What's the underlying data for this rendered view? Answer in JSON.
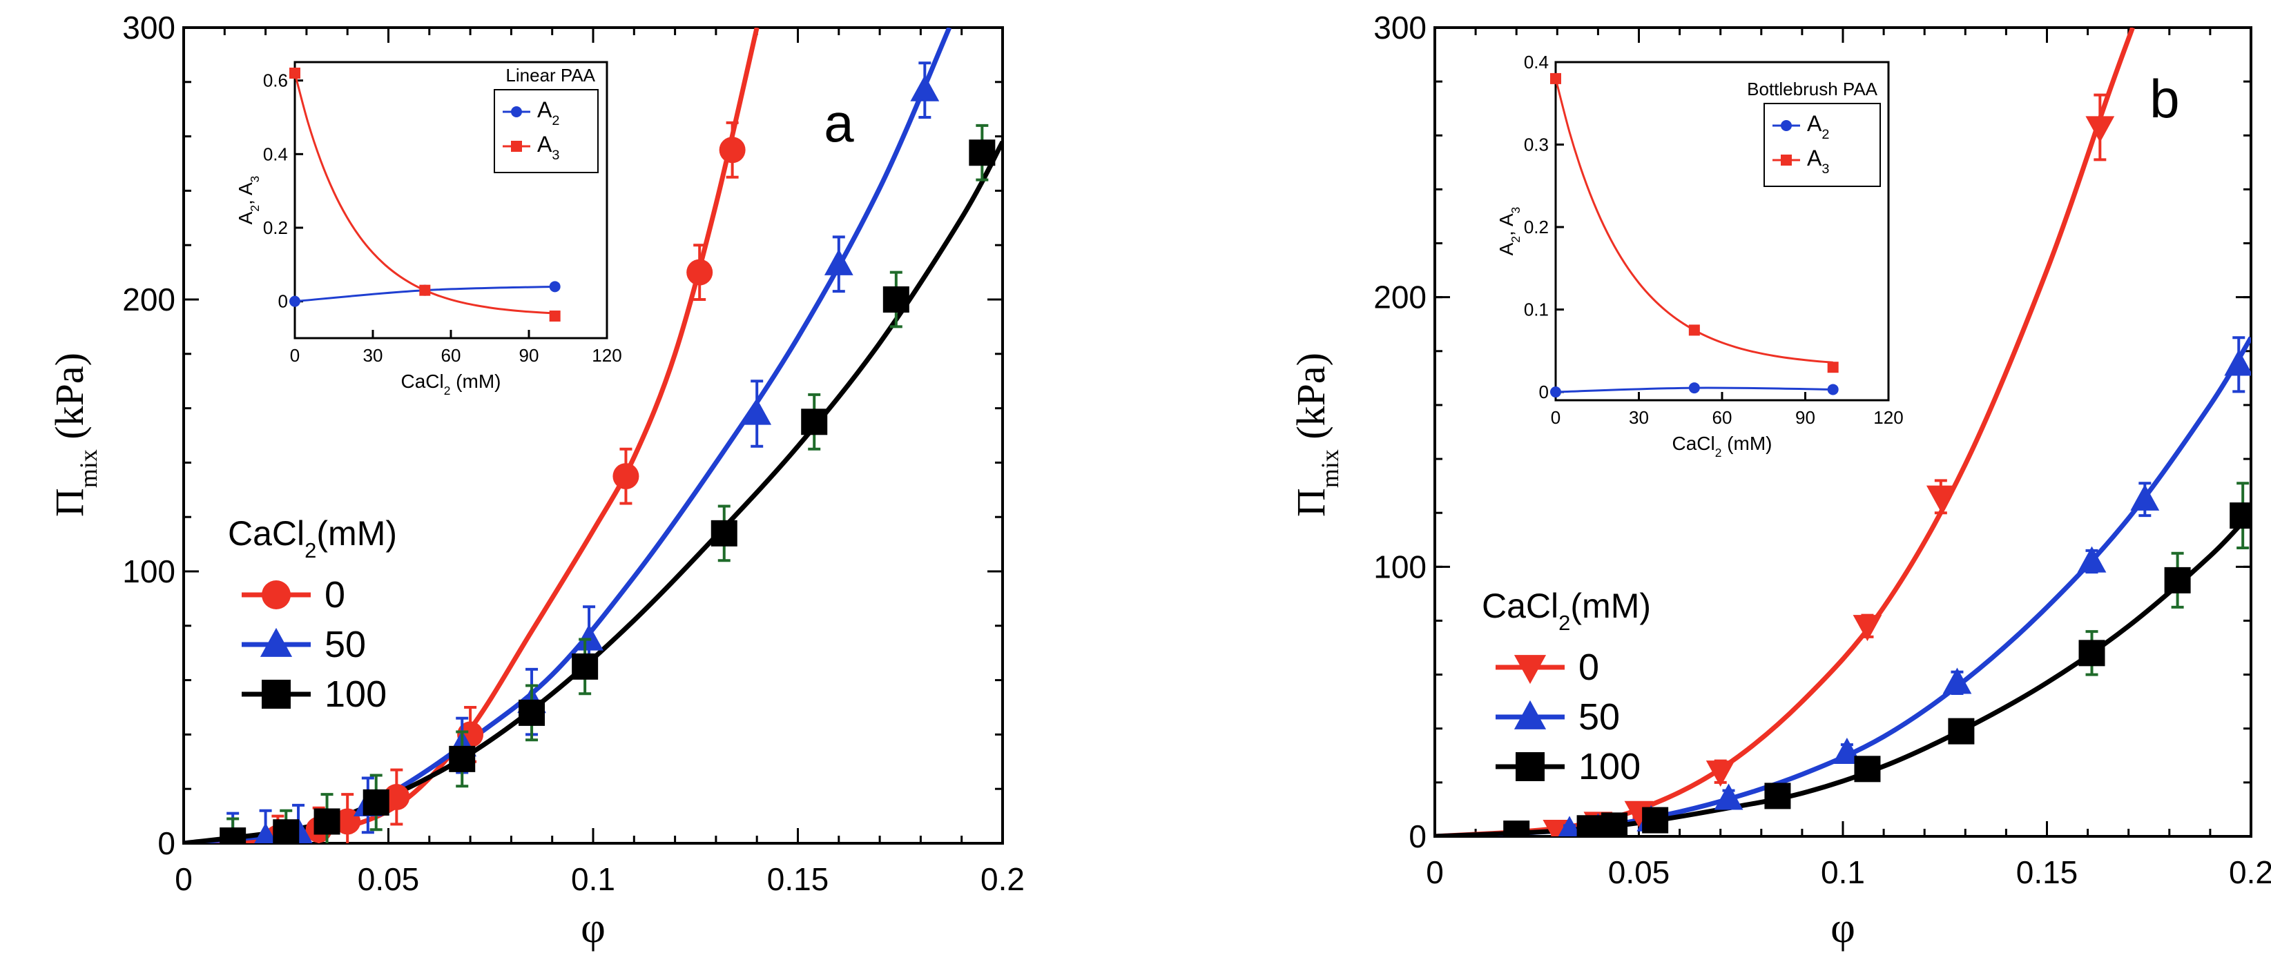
{
  "figure": {
    "domain": "Chart"
  },
  "chart_data": [
    {
      "id": "a",
      "type": "scatter",
      "panel_label": "a",
      "xlabel": "φ",
      "ylabel": "Π",
      "ylabel_sub": "mix",
      "ylabel_units": "(kPa)",
      "xlim": [
        0,
        0.2
      ],
      "ylim": [
        0,
        300
      ],
      "xticks": [
        0,
        0.05,
        0.1,
        0.15,
        0.2
      ],
      "xtick_labels": [
        "0",
        "0.05",
        "0.1",
        "0.15",
        "0.2"
      ],
      "yticks": [
        0,
        100,
        200,
        300
      ],
      "ytick_labels": [
        "0",
        "100",
        "200",
        "300"
      ],
      "grid": false,
      "legend": {
        "title": "CaCl",
        "title_sub": "2",
        "title_rest": "(mM)",
        "placement": "middle-left",
        "entries": [
          "0",
          "50",
          "100"
        ]
      },
      "series": [
        {
          "name": "0",
          "color": "#ee3124",
          "marker": "circle",
          "x": [
            0.023,
            0.033,
            0.04,
            0.052,
            0.07,
            0.108,
            0.126,
            0.134
          ],
          "y": [
            2,
            5,
            8,
            17,
            40,
            135,
            210,
            255
          ],
          "err": [
            8,
            8,
            10,
            10,
            10,
            10,
            10,
            10
          ],
          "fit": [
            [
              0,
              0
            ],
            [
              0.02,
              1
            ],
            [
              0.04,
              6
            ],
            [
              0.055,
              17
            ],
            [
              0.07,
              42
            ],
            [
              0.085,
              78
            ],
            [
              0.1,
              115
            ],
            [
              0.11,
              142
            ],
            [
              0.12,
              180
            ],
            [
              0.13,
              235
            ],
            [
              0.14,
              300
            ]
          ]
        },
        {
          "name": "50",
          "color": "#1f3fd1",
          "marker": "triangle-up",
          "x": [
            0.012,
            0.02,
            0.028,
            0.045,
            0.068,
            0.085,
            0.099,
            0.14,
            0.16,
            0.181
          ],
          "y": [
            1,
            2,
            4,
            14,
            36,
            52,
            75,
            158,
            213,
            277
          ],
          "err": [
            10,
            10,
            10,
            10,
            10,
            12,
            12,
            12,
            10,
            10
          ],
          "fit": [
            [
              0,
              0
            ],
            [
              0.03,
              5
            ],
            [
              0.05,
              18
            ],
            [
              0.07,
              38
            ],
            [
              0.09,
              62
            ],
            [
              0.11,
              98
            ],
            [
              0.13,
              140
            ],
            [
              0.15,
              186
            ],
            [
              0.17,
              241
            ],
            [
              0.187,
              300
            ]
          ]
        },
        {
          "name": "100",
          "color": "#000000",
          "marker": "square",
          "x": [
            0.012,
            0.025,
            0.035,
            0.047,
            0.068,
            0.085,
            0.098,
            0.132,
            0.154,
            0.174,
            0.195
          ],
          "y": [
            1,
            4,
            8,
            15,
            31,
            48,
            65,
            114,
            155,
            200,
            254
          ],
          "err": [
            8,
            8,
            10,
            10,
            10,
            10,
            10,
            10,
            10,
            10,
            10
          ],
          "fit": [
            [
              0,
              0
            ],
            [
              0.03,
              6
            ],
            [
              0.05,
              17
            ],
            [
              0.07,
              33
            ],
            [
              0.09,
              55
            ],
            [
              0.11,
              82
            ],
            [
              0.13,
              113
            ],
            [
              0.15,
              146
            ],
            [
              0.17,
              184
            ],
            [
              0.19,
              230
            ],
            [
              0.2,
              258
            ]
          ]
        }
      ],
      "inset": {
        "title": "Linear PAA",
        "xlabel": "CaCl",
        "xlabel_sub": "2",
        "xlabel_rest": " (mM)",
        "ylabel": "A",
        "ylabel_parts": [
          "A",
          "2",
          ", A",
          "3"
        ],
        "xlim": [
          0,
          120
        ],
        "ylim": [
          -0.1,
          0.65
        ],
        "xticks": [
          0,
          30,
          60,
          90,
          120
        ],
        "xtick_labels": [
          "0",
          "30",
          "60",
          "90",
          "120"
        ],
        "yticks": [
          0,
          0.2,
          0.4,
          0.6
        ],
        "ytick_labels": [
          "0",
          "0.2",
          "0.4",
          "0.6"
        ],
        "legend_entries": [
          {
            "label": "A",
            "sub": "2",
            "color": "#1f3fd1",
            "marker": "circle"
          },
          {
            "label": "A",
            "sub": "3",
            "color": "#ee3124",
            "marker": "square"
          }
        ],
        "series": [
          {
            "name": "A2",
            "color": "#1f3fd1",
            "marker": "circle",
            "x": [
              0,
              50,
              100
            ],
            "y": [
              0.0,
              0.03,
              0.04
            ]
          },
          {
            "name": "A3",
            "color": "#ee3124",
            "marker": "square",
            "x": [
              0,
              50,
              100
            ],
            "y": [
              0.62,
              0.03,
              -0.04
            ]
          }
        ]
      }
    },
    {
      "id": "b",
      "type": "scatter",
      "panel_label": "b",
      "xlabel": "φ",
      "ylabel": "Π",
      "ylabel_sub": "mix",
      "ylabel_units": "(kPa)",
      "xlim": [
        0,
        0.2
      ],
      "ylim": [
        0,
        300
      ],
      "xticks": [
        0,
        0.05,
        0.1,
        0.15,
        0.2
      ],
      "xtick_labels": [
        "0",
        "0.05",
        "0.1",
        "0.15",
        "0.2"
      ],
      "yticks": [
        0,
        100,
        200,
        300
      ],
      "ytick_labels": [
        "0",
        "100",
        "200",
        "300"
      ],
      "grid": false,
      "legend": {
        "title": "CaCl",
        "title_sub": "2",
        "title_rest": "(mM)",
        "placement": "lower-left",
        "entries": [
          "0",
          "50",
          "100"
        ]
      },
      "series": [
        {
          "name": "0",
          "color": "#ee3124",
          "marker": "triangle-down",
          "x": [
            0.03,
            0.04,
            0.05,
            0.07,
            0.106,
            0.124,
            0.163
          ],
          "y": [
            2,
            5,
            9,
            24,
            78,
            126,
            263
          ],
          "err": [
            2,
            2,
            2,
            4,
            4,
            6,
            12
          ],
          "fit": [
            [
              0,
              0
            ],
            [
              0.03,
              3
            ],
            [
              0.05,
              10
            ],
            [
              0.07,
              25
            ],
            [
              0.09,
              50
            ],
            [
              0.11,
              85
            ],
            [
              0.13,
              138
            ],
            [
              0.15,
              210
            ],
            [
              0.165,
              275
            ],
            [
              0.171,
              300
            ]
          ]
        },
        {
          "name": "50",
          "color": "#1f3fd1",
          "marker": "triangle-up",
          "x": [
            0.033,
            0.04,
            0.053,
            0.072,
            0.101,
            0.128,
            0.161,
            0.174,
            0.197
          ],
          "y": [
            2,
            3,
            6,
            14,
            31,
            57,
            102,
            125,
            175
          ],
          "err": [
            2,
            2,
            2,
            3,
            3,
            4,
            4,
            6,
            10
          ],
          "fit": [
            [
              0,
              0
            ],
            [
              0.03,
              2
            ],
            [
              0.05,
              6
            ],
            [
              0.07,
              13
            ],
            [
              0.09,
              23
            ],
            [
              0.11,
              37
            ],
            [
              0.13,
              58
            ],
            [
              0.15,
              85
            ],
            [
              0.17,
              118
            ],
            [
              0.19,
              160
            ],
            [
              0.2,
              185
            ]
          ]
        },
        {
          "name": "100",
          "color": "#000000",
          "marker": "square",
          "x": [
            0.02,
            0.038,
            0.044,
            0.054,
            0.084,
            0.106,
            0.129,
            0.161,
            0.182,
            0.198
          ],
          "y": [
            1,
            3,
            4,
            6,
            15,
            25,
            39,
            68,
            95,
            119
          ],
          "err": [
            2,
            2,
            2,
            2,
            3,
            3,
            4,
            8,
            10,
            12
          ],
          "fit": [
            [
              0,
              0
            ],
            [
              0.03,
              2
            ],
            [
              0.05,
              5
            ],
            [
              0.07,
              10
            ],
            [
              0.09,
              16
            ],
            [
              0.11,
              26
            ],
            [
              0.13,
              40
            ],
            [
              0.15,
              57
            ],
            [
              0.17,
              78
            ],
            [
              0.19,
              104
            ],
            [
              0.2,
              120
            ]
          ]
        }
      ],
      "inset": {
        "title": "Bottlebrush PAA",
        "xlabel": "CaCl",
        "xlabel_sub": "2",
        "xlabel_rest": " (mM)",
        "ylabel_parts": [
          "A",
          "2",
          ", A",
          "3"
        ],
        "xlim": [
          0,
          120
        ],
        "ylim": [
          -0.01,
          0.4
        ],
        "xticks": [
          0,
          30,
          60,
          90,
          120
        ],
        "xtick_labels": [
          "0",
          "30",
          "60",
          "90",
          "120"
        ],
        "yticks": [
          0,
          0.1,
          0.2,
          0.3,
          0.4
        ],
        "ytick_labels": [
          "0",
          "0.1",
          "0.2",
          "0.3",
          "0.4"
        ],
        "legend_entries": [
          {
            "label": "A",
            "sub": "2",
            "color": "#1f3fd1",
            "marker": "circle"
          },
          {
            "label": "A",
            "sub": "3",
            "color": "#ee3124",
            "marker": "square"
          }
        ],
        "series": [
          {
            "name": "A2",
            "color": "#1f3fd1",
            "marker": "circle",
            "x": [
              0,
              50,
              100
            ],
            "y": [
              0.0,
              0.005,
              0.003
            ]
          },
          {
            "name": "A3",
            "color": "#ee3124",
            "marker": "square",
            "x": [
              0,
              50,
              100
            ],
            "y": [
              0.38,
              0.075,
              0.03
            ]
          }
        ]
      }
    }
  ]
}
